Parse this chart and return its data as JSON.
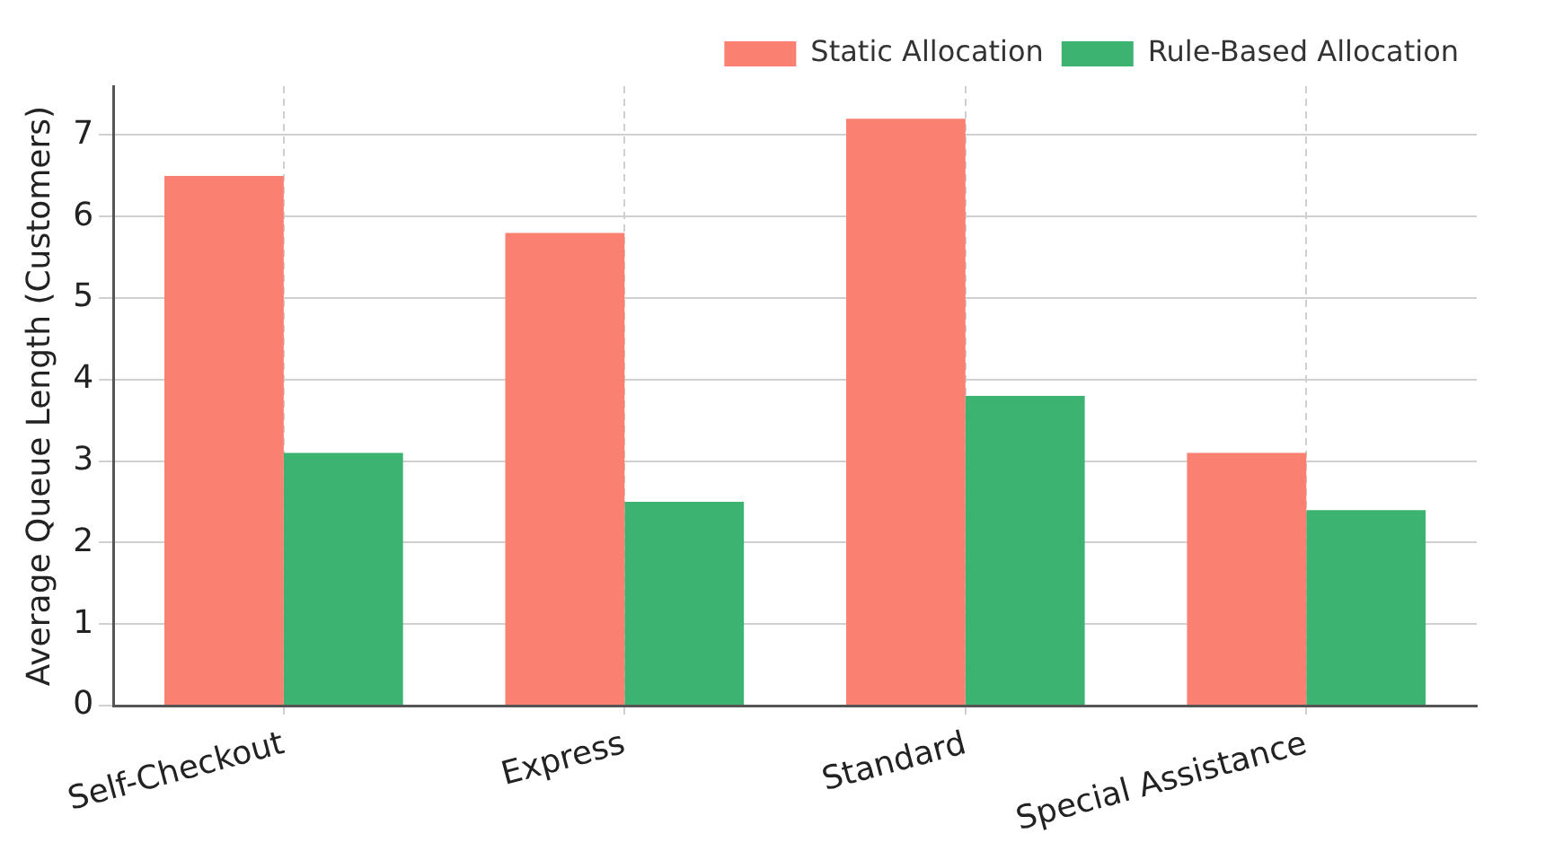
{
  "chart_data": {
    "type": "bar",
    "ylabel": "Average Queue Length (Customers)",
    "categories": [
      "Self-Checkout",
      "Express",
      "Standard",
      "Special Assistance"
    ],
    "series": [
      {
        "name": "Static Allocation",
        "color": "#fa8072",
        "values": [
          6.5,
          5.8,
          7.2,
          3.1
        ]
      },
      {
        "name": "Rule-Based Allocation",
        "color": "#3cb371",
        "values": [
          3.1,
          2.5,
          3.8,
          2.4
        ]
      }
    ],
    "ylim": [
      0,
      7.6
    ],
    "yticks": [
      0,
      1,
      2,
      3,
      4,
      5,
      6,
      7
    ],
    "grid": true,
    "legend": "top right"
  }
}
